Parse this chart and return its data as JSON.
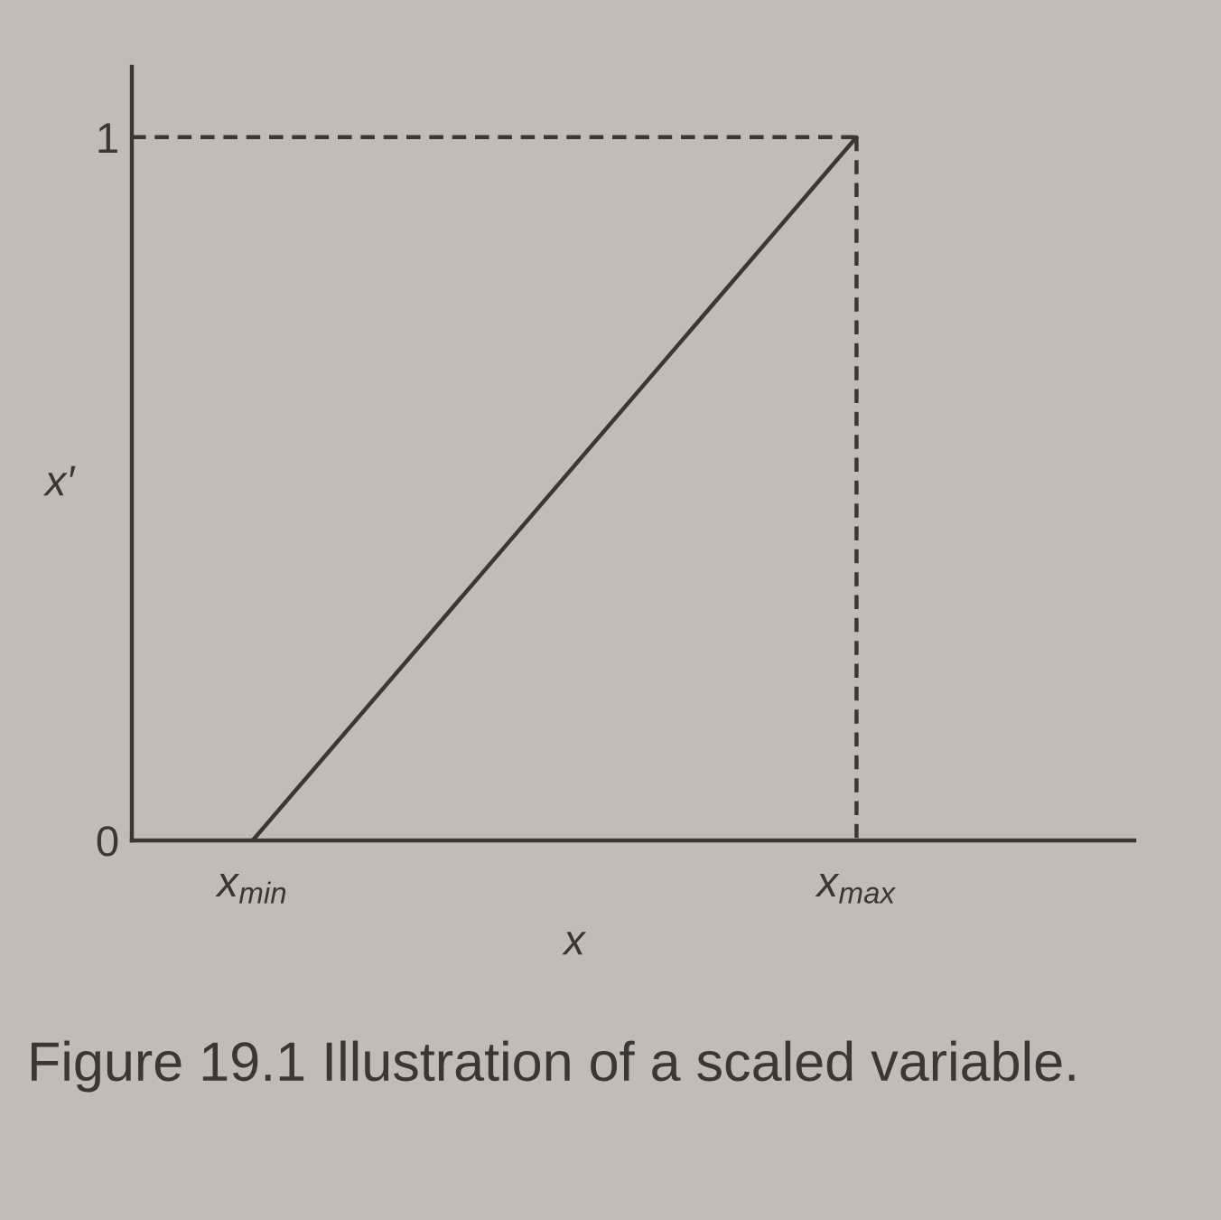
{
  "chart_data": {
    "type": "line",
    "xlabel": "x",
    "ylabel": "x′",
    "annotations": [
      "Figure 19.1 Illustration of a scaled variable."
    ],
    "categories": [
      null,
      "x$_{min}$",
      null,
      null,
      null,
      null,
      "x$_{max}$",
      null,
      null
    ],
    "series": [
      {
        "x": [
          "x$_{min}$",
          "x$_{max}$"
        ],
        "values": [
          0,
          1
        ],
        "color": "#3b3734"
      },
      {
        "values": [
          1,
          1,
          1,
          1,
          1,
          1,
          1,
          null,
          null
        ],
        "color": "#3b3734",
        "line_style": "dashed"
      },
      {
        "x": [
          "x$_{max}$",
          "x$_{max}$"
        ],
        "values": [
          1,
          0
        ],
        "color": "#3b3734",
        "line_style": "dashed"
      }
    ],
    "ylim": [
      0,
      1.1
    ],
    "yticks": [
      0,
      1
    ]
  }
}
